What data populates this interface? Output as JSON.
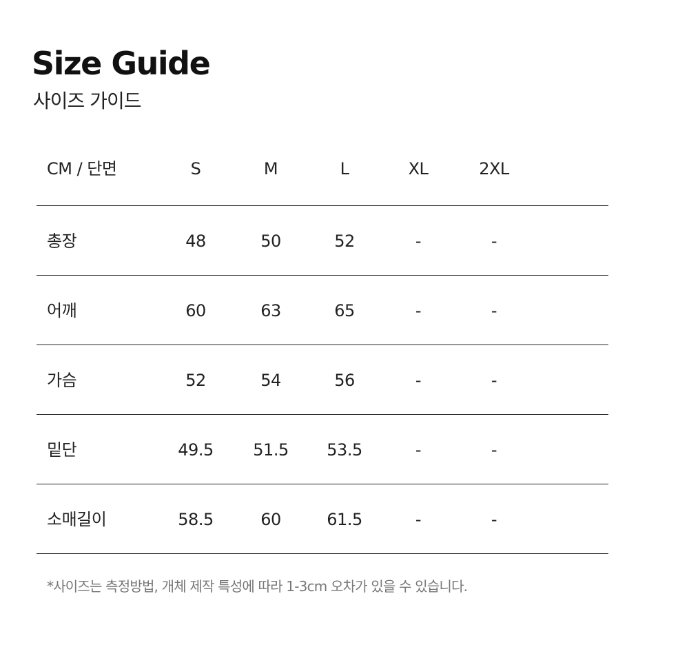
{
  "title": "Size Guide",
  "subtitle": "사이즈 가이드",
  "table": {
    "unit_header": "CM / 단면",
    "sizes": [
      "S",
      "M",
      "L",
      "XL",
      "2XL"
    ],
    "rows": [
      {
        "label": "총장",
        "values": [
          "48",
          "50",
          "52",
          "-",
          "-"
        ]
      },
      {
        "label": "어깨",
        "values": [
          "60",
          "63",
          "65",
          "-",
          "-"
        ]
      },
      {
        "label": "가슴",
        "values": [
          "52",
          "54",
          "56",
          "-",
          "-"
        ]
      },
      {
        "label": "밑단",
        "values": [
          "49.5",
          "51.5",
          "53.5",
          "-",
          "-"
        ]
      },
      {
        "label": "소매길이",
        "values": [
          "58.5",
          "60",
          "61.5",
          "-",
          "-"
        ]
      }
    ]
  },
  "note": "*사이즈는 측정방법, 개체 제작 특성에 따라 1-3cm 오차가 있을 수 있습니다."
}
